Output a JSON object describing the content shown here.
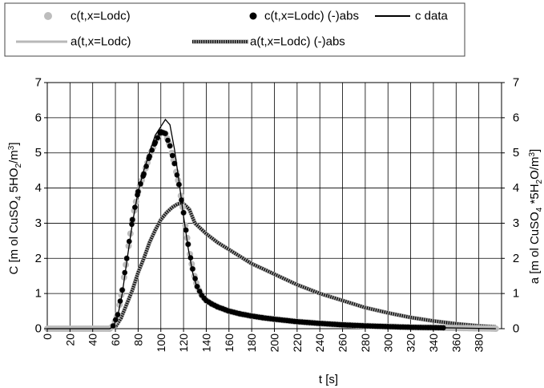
{
  "chart_data": {
    "type": "scatter",
    "title": "",
    "xlabel": "t [s]",
    "ylabel_left_parts": [
      "C [m ol CuSO",
      "4",
      " 5HO",
      "2",
      "/m",
      "3",
      "]"
    ],
    "ylabel_right_parts": [
      "a [m ol CuSO",
      "4",
      " *5H",
      "2",
      "O/m",
      "3",
      "]"
    ],
    "xlim": [
      0,
      400
    ],
    "ylim": [
      0,
      7
    ],
    "y2lim": [
      0,
      7
    ],
    "x_ticks": [
      "0",
      "20",
      "40",
      "60",
      "80",
      "100",
      "120",
      "140",
      "160",
      "180",
      "200",
      "220",
      "240",
      "260",
      "280",
      "300",
      "320",
      "340",
      "360",
      "380"
    ],
    "y_ticks": [
      "0",
      "1",
      "2",
      "3",
      "4",
      "5",
      "6",
      "7"
    ],
    "y2_ticks": [
      "0",
      "1",
      "2",
      "3",
      "4",
      "5",
      "6",
      "7"
    ],
    "grid": true,
    "legend_position": "top",
    "series": [
      {
        "name": "c(t,x=Lodc)",
        "style": "gray-dots",
        "color": "#bdbdbd",
        "x": [
          0,
          55,
          58,
          62,
          66,
          70,
          75,
          80,
          85,
          90,
          95,
          100,
          104,
          108,
          112,
          116,
          120,
          124,
          128,
          132,
          136,
          140,
          145,
          150,
          160,
          170,
          180,
          190,
          200,
          220,
          240,
          260,
          280,
          300,
          320,
          340,
          360,
          380,
          395
        ],
        "y": [
          0,
          0,
          0.08,
          0.4,
          1.1,
          2.0,
          3.1,
          3.9,
          4.4,
          4.9,
          5.3,
          5.6,
          5.55,
          5.2,
          4.7,
          4.1,
          3.3,
          2.4,
          1.7,
          1.2,
          0.95,
          0.8,
          0.7,
          0.62,
          0.5,
          0.42,
          0.36,
          0.31,
          0.27,
          0.2,
          0.15,
          0.11,
          0.08,
          0.06,
          0.04,
          0.03,
          0.02,
          0.01,
          0
        ]
      },
      {
        "name": "c(t,x=Lodc) (-)abs",
        "style": "black-dots",
        "color": "#000000",
        "x": [
          0,
          55,
          58,
          62,
          66,
          70,
          75,
          80,
          85,
          90,
          95,
          100,
          104,
          108,
          112,
          116,
          120,
          124,
          128,
          132,
          136,
          140,
          145,
          150,
          160,
          170,
          180,
          190,
          200,
          220,
          240,
          260,
          280,
          300,
          320,
          340,
          360,
          380,
          395
        ],
        "y": [
          0,
          0,
          0.08,
          0.4,
          1.1,
          2.0,
          3.1,
          3.9,
          4.4,
          4.9,
          5.3,
          5.6,
          5.55,
          5.2,
          4.7,
          4.1,
          3.3,
          2.4,
          1.7,
          1.2,
          0.95,
          0.8,
          0.7,
          0.62,
          0.5,
          0.42,
          0.36,
          0.31,
          0.27,
          0.2,
          0.15,
          0.11,
          0.08,
          0.06,
          0.04,
          0.03,
          0.02,
          0.01,
          0
        ]
      },
      {
        "name": "c data",
        "style": "black-line",
        "color": "#000000",
        "x": [
          0,
          55,
          58,
          62,
          66,
          70,
          75,
          80,
          85,
          90,
          95,
          100,
          104,
          108,
          112,
          116,
          120,
          124,
          128,
          132,
          136,
          140,
          145,
          150,
          160,
          170,
          180,
          190,
          200,
          220,
          240,
          260,
          280,
          300,
          320,
          340,
          360,
          380,
          395
        ],
        "y": [
          0,
          0,
          0.05,
          0.35,
          1.0,
          1.9,
          3.0,
          3.9,
          4.5,
          5.0,
          5.5,
          5.75,
          5.95,
          5.8,
          5.1,
          4.2,
          3.2,
          2.3,
          1.6,
          1.15,
          0.9,
          0.78,
          0.68,
          0.6,
          0.48,
          0.4,
          0.34,
          0.3,
          0.26,
          0.19,
          0.14,
          0.1,
          0.07,
          0.05,
          0.04,
          0.03,
          0.02,
          0.01,
          0
        ]
      },
      {
        "name": "a(t,x=Lodc)",
        "style": "gray-line",
        "color": "#b8b8b8",
        "x": [
          0,
          55,
          60,
          65,
          70,
          75,
          80,
          85,
          90,
          95,
          100,
          105,
          110,
          115,
          120,
          125,
          130,
          140,
          150,
          160,
          170,
          180,
          190,
          200,
          220,
          240,
          260,
          280,
          300,
          320,
          340,
          360,
          380,
          395
        ],
        "y": [
          0,
          0,
          0.05,
          0.3,
          0.7,
          1.1,
          1.6,
          2.0,
          2.45,
          2.8,
          3.1,
          3.3,
          3.45,
          3.55,
          3.55,
          3.4,
          3.0,
          2.7,
          2.45,
          2.25,
          2.05,
          1.85,
          1.7,
          1.55,
          1.25,
          1.0,
          0.8,
          0.6,
          0.45,
          0.32,
          0.22,
          0.14,
          0.08,
          0.05
        ]
      },
      {
        "name": "a(t,x=Lodc) (-)abs",
        "style": "hatched-line",
        "color": "#000000",
        "x": [
          0,
          55,
          60,
          65,
          70,
          75,
          80,
          85,
          90,
          95,
          100,
          105,
          110,
          115,
          120,
          125,
          130,
          140,
          150,
          160,
          170,
          180,
          190,
          200,
          220,
          240,
          260,
          280,
          300,
          320,
          340,
          360,
          380,
          395
        ],
        "y": [
          0,
          0,
          0.05,
          0.3,
          0.7,
          1.1,
          1.6,
          2.0,
          2.45,
          2.8,
          3.1,
          3.3,
          3.45,
          3.55,
          3.55,
          3.4,
          3.0,
          2.7,
          2.45,
          2.25,
          2.05,
          1.85,
          1.7,
          1.55,
          1.25,
          1.0,
          0.8,
          0.6,
          0.45,
          0.32,
          0.22,
          0.14,
          0.08,
          0.05
        ]
      }
    ]
  }
}
